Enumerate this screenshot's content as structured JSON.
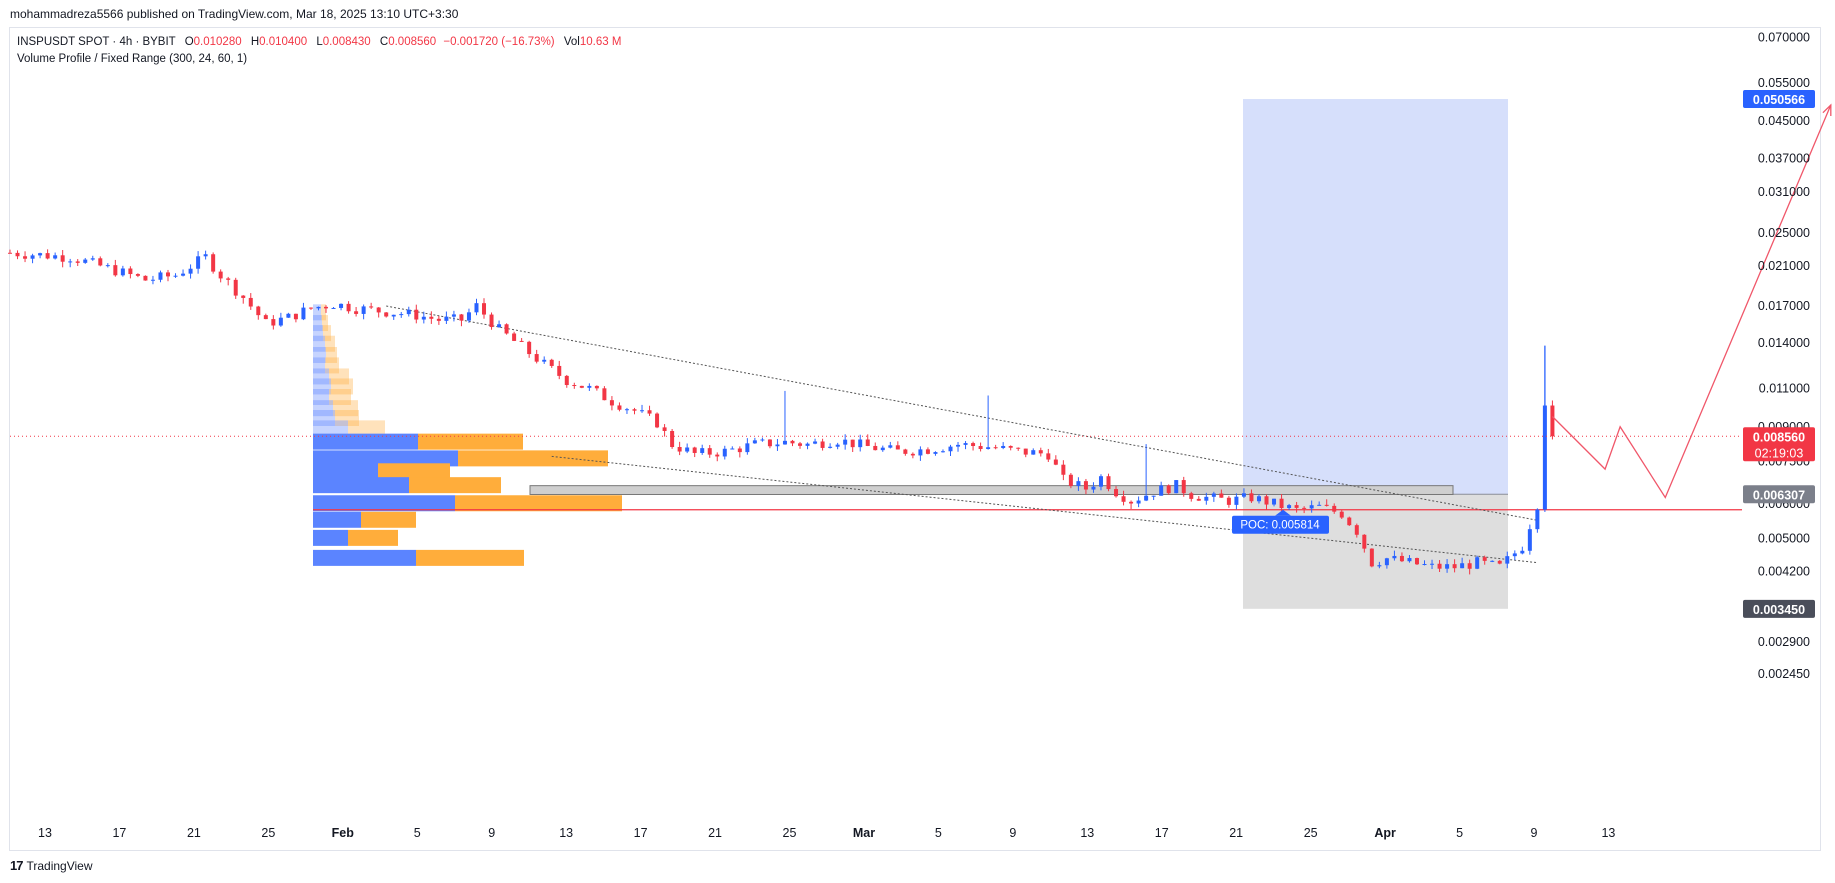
{
  "header": {
    "published": "mohammadreza5566 published on TradingView.com, Mar 18, 2025 13:10 UTC+3:30"
  },
  "legend": {
    "symbol": "INSPUSDT SPOT · 4h · BYBIT",
    "o_label": "O",
    "o_value": "0.010280",
    "h_label": "H",
    "h_value": "0.010400",
    "l_label": "L",
    "l_value": "0.008430",
    "c_label": "C",
    "c_value": "0.008560",
    "change": "−0.001720 (−16.73%)",
    "vol_label": "Vol",
    "vol_value": "10.63 M",
    "indicator": "Volume Profile / Fixed Range (300, 24, 60, 1)"
  },
  "footer": {
    "brand": "TradingView",
    "logo": "17"
  },
  "colors": {
    "up": "#2962ff",
    "down": "#f23645",
    "target_zone": "#d1dcfb",
    "stop_zone": "#dcdcdc",
    "vp_up": "#5b84ff",
    "vp_down": "#ffad3b",
    "poc_line": "#f23645",
    "price_label": "#f23645",
    "dark_label": "#4a4e5a"
  },
  "chart_data": {
    "type": "candlestick",
    "symbol": "INSPUSDT",
    "exchange": "BYBIT",
    "timeframe": "4h",
    "y_scale": "log",
    "ylim": [
      0.00225,
      0.0735
    ],
    "y_ticks": [
      "0.070000",
      "0.055000",
      "0.045000",
      "0.037000",
      "0.031000",
      "0.025000",
      "0.021000",
      "0.017000",
      "0.014000",
      "0.011000",
      "0.009000",
      "0.007500",
      "0.006000",
      "0.005000",
      "0.004200",
      "0.002900",
      "0.002450"
    ],
    "x_ticks": [
      {
        "label": "13",
        "bold": false
      },
      {
        "label": "17",
        "bold": false
      },
      {
        "label": "21",
        "bold": false
      },
      {
        "label": "25",
        "bold": false
      },
      {
        "label": "Feb",
        "bold": true
      },
      {
        "label": "5",
        "bold": false
      },
      {
        "label": "9",
        "bold": false
      },
      {
        "label": "13",
        "bold": false
      },
      {
        "label": "17",
        "bold": false
      },
      {
        "label": "21",
        "bold": false
      },
      {
        "label": "25",
        "bold": false
      },
      {
        "label": "Mar",
        "bold": true
      },
      {
        "label": "5",
        "bold": false
      },
      {
        "label": "9",
        "bold": false
      },
      {
        "label": "13",
        "bold": false
      },
      {
        "label": "17",
        "bold": false
      },
      {
        "label": "21",
        "bold": false
      },
      {
        "label": "25",
        "bold": false
      },
      {
        "label": "Apr",
        "bold": true
      },
      {
        "label": "5",
        "bold": false
      },
      {
        "label": "9",
        "bold": false
      },
      {
        "label": "13",
        "bold": false
      }
    ],
    "price_path": [
      [
        0,
        0.0225
      ],
      [
        8,
        0.022
      ],
      [
        14,
        0.0205
      ],
      [
        18,
        0.0195
      ],
      [
        22,
        0.02
      ],
      [
        26,
        0.022
      ],
      [
        28,
        0.02
      ],
      [
        31,
        0.0178
      ],
      [
        34,
        0.0155
      ],
      [
        37,
        0.016
      ],
      [
        40,
        0.0168
      ],
      [
        43,
        0.0172
      ],
      [
        46,
        0.0168
      ],
      [
        50,
        0.0165
      ],
      [
        54,
        0.0162
      ],
      [
        57,
        0.0158
      ],
      [
        60,
        0.0158
      ],
      [
        62,
        0.017
      ],
      [
        65,
        0.015
      ],
      [
        68,
        0.0137
      ],
      [
        71,
        0.0125
      ],
      [
        74,
        0.0115
      ],
      [
        77,
        0.011
      ],
      [
        80,
        0.0103
      ],
      [
        83,
        0.0098
      ],
      [
        86,
        0.0092
      ],
      [
        88,
        0.0082
      ],
      [
        91,
        0.0078
      ],
      [
        95,
        0.0079
      ],
      [
        99,
        0.0082
      ],
      [
        103,
        0.0083
      ],
      [
        106,
        0.0082
      ],
      [
        110,
        0.0084
      ],
      [
        114,
        0.0081
      ],
      [
        118,
        0.0079
      ],
      [
        122,
        0.008
      ],
      [
        126,
        0.0082
      ],
      [
        130,
        0.0081
      ],
      [
        134,
        0.0079
      ],
      [
        138,
        0.0078
      ],
      [
        140,
        0.0068
      ],
      [
        143,
        0.0065
      ],
      [
        145,
        0.0069
      ],
      [
        147,
        0.0064
      ],
      [
        149,
        0.0061
      ],
      [
        152,
        0.0064
      ],
      [
        155,
        0.0066
      ],
      [
        157,
        0.0063
      ],
      [
        159,
        0.0062
      ],
      [
        162,
        0.0061
      ],
      [
        165,
        0.0062
      ],
      [
        168,
        0.006
      ],
      [
        171,
        0.0058
      ],
      [
        174,
        0.0059
      ],
      [
        177,
        0.0057
      ],
      [
        179,
        0.0052
      ],
      [
        181,
        0.0044
      ],
      [
        183,
        0.0045
      ],
      [
        186,
        0.0044
      ],
      [
        189,
        0.0043
      ],
      [
        192,
        0.0043
      ],
      [
        195,
        0.0044
      ],
      [
        198,
        0.0043
      ],
      [
        201,
        0.0048
      ],
      [
        203,
        0.006
      ],
      [
        204,
        0.0103
      ],
      [
        205,
        0.00856
      ]
    ],
    "last_price": 0.00856,
    "last_price_label": "0.008560",
    "countdown": "02:19:03",
    "volume_profile": {
      "name": "Volume Profile / Fixed Range (300, 24, 60, 1)",
      "poc": 0.005814,
      "poc_label": "POC: 0.005814",
      "rows": [
        {
          "price": 0.0164,
          "up": 8,
          "down": 5
        },
        {
          "price": 0.0155,
          "up": 9,
          "down": 6
        },
        {
          "price": 0.0147,
          "up": 10,
          "down": 8
        },
        {
          "price": 0.0139,
          "up": 12,
          "down": 10
        },
        {
          "price": 0.0131,
          "up": 13,
          "down": 11
        },
        {
          "price": 0.0124,
          "up": 12,
          "down": 14
        },
        {
          "price": 0.0117,
          "up": 16,
          "down": 20
        },
        {
          "price": 0.0111,
          "up": 18,
          "down": 22
        },
        {
          "price": 0.0105,
          "up": 16,
          "down": 22
        },
        {
          "price": 0.0099,
          "up": 20,
          "down": 25
        },
        {
          "price": 0.0094,
          "up": 22,
          "down": 24
        },
        {
          "price": 0.0089,
          "up": 35,
          "down": 37
        },
        {
          "price": 0.0083,
          "up": 105,
          "down": 105
        },
        {
          "price": 0.0076,
          "up": 145,
          "down": 150
        },
        {
          "price": 0.0071,
          "up": 65,
          "down": 72
        },
        {
          "price": 0.0066,
          "up": 96,
          "down": 92
        },
        {
          "price": 0.006,
          "up": 142,
          "down": 167
        },
        {
          "price": 0.0055,
          "up": 48,
          "down": 55
        },
        {
          "price": 0.005,
          "up": 35,
          "down": 50
        },
        {
          "price": 0.0045,
          "up": 103,
          "down": 108
        }
      ]
    },
    "drawings": {
      "target_price": 0.050566,
      "target_label": "0.050566",
      "entry_price": 0.006307,
      "entry_label": "0.006307",
      "stop_price": 0.00345,
      "stop_label": "0.003450",
      "support_zone": [
        0.0063,
        0.0066
      ],
      "wedge_upper": [
        [
          50,
          0.017
        ],
        [
          203,
          0.0055
        ]
      ],
      "wedge_lower": [
        [
          72,
          0.0077
        ],
        [
          203,
          0.0044
        ]
      ],
      "projection": [
        [
          205,
          0.0095
        ],
        [
          212,
          0.0072
        ],
        [
          214,
          0.009
        ],
        [
          220,
          0.0062
        ],
        [
          242,
          0.049
        ]
      ]
    }
  }
}
